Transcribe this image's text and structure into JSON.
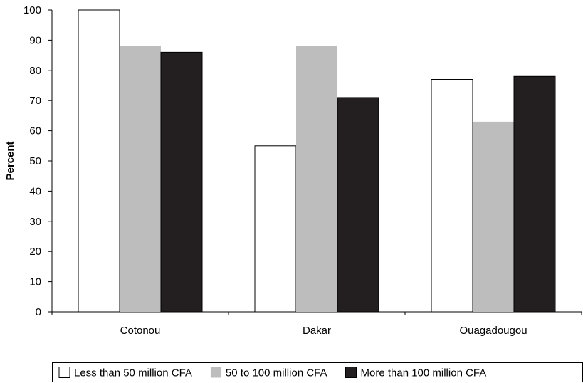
{
  "chart_data": {
    "type": "bar",
    "title": "",
    "xlabel": "",
    "ylabel": "Percent",
    "ylim": [
      0,
      100
    ],
    "yticks": [
      0,
      10,
      20,
      30,
      40,
      50,
      60,
      70,
      80,
      90,
      100
    ],
    "categories": [
      "Cotonou",
      "Dakar",
      "Ouagadougou"
    ],
    "series": [
      {
        "name": "Less than 50 million CFA",
        "color": "#ffffff",
        "values": [
          100,
          55,
          77
        ]
      },
      {
        "name": "50 to 100 million CFA",
        "color": "#bdbdbd",
        "values": [
          88,
          88,
          63
        ]
      },
      {
        "name": "More than 100 million CFA",
        "color": "#231f20",
        "values": [
          86,
          71,
          78
        ]
      }
    ],
    "grid": false,
    "legend_position": "bottom"
  }
}
